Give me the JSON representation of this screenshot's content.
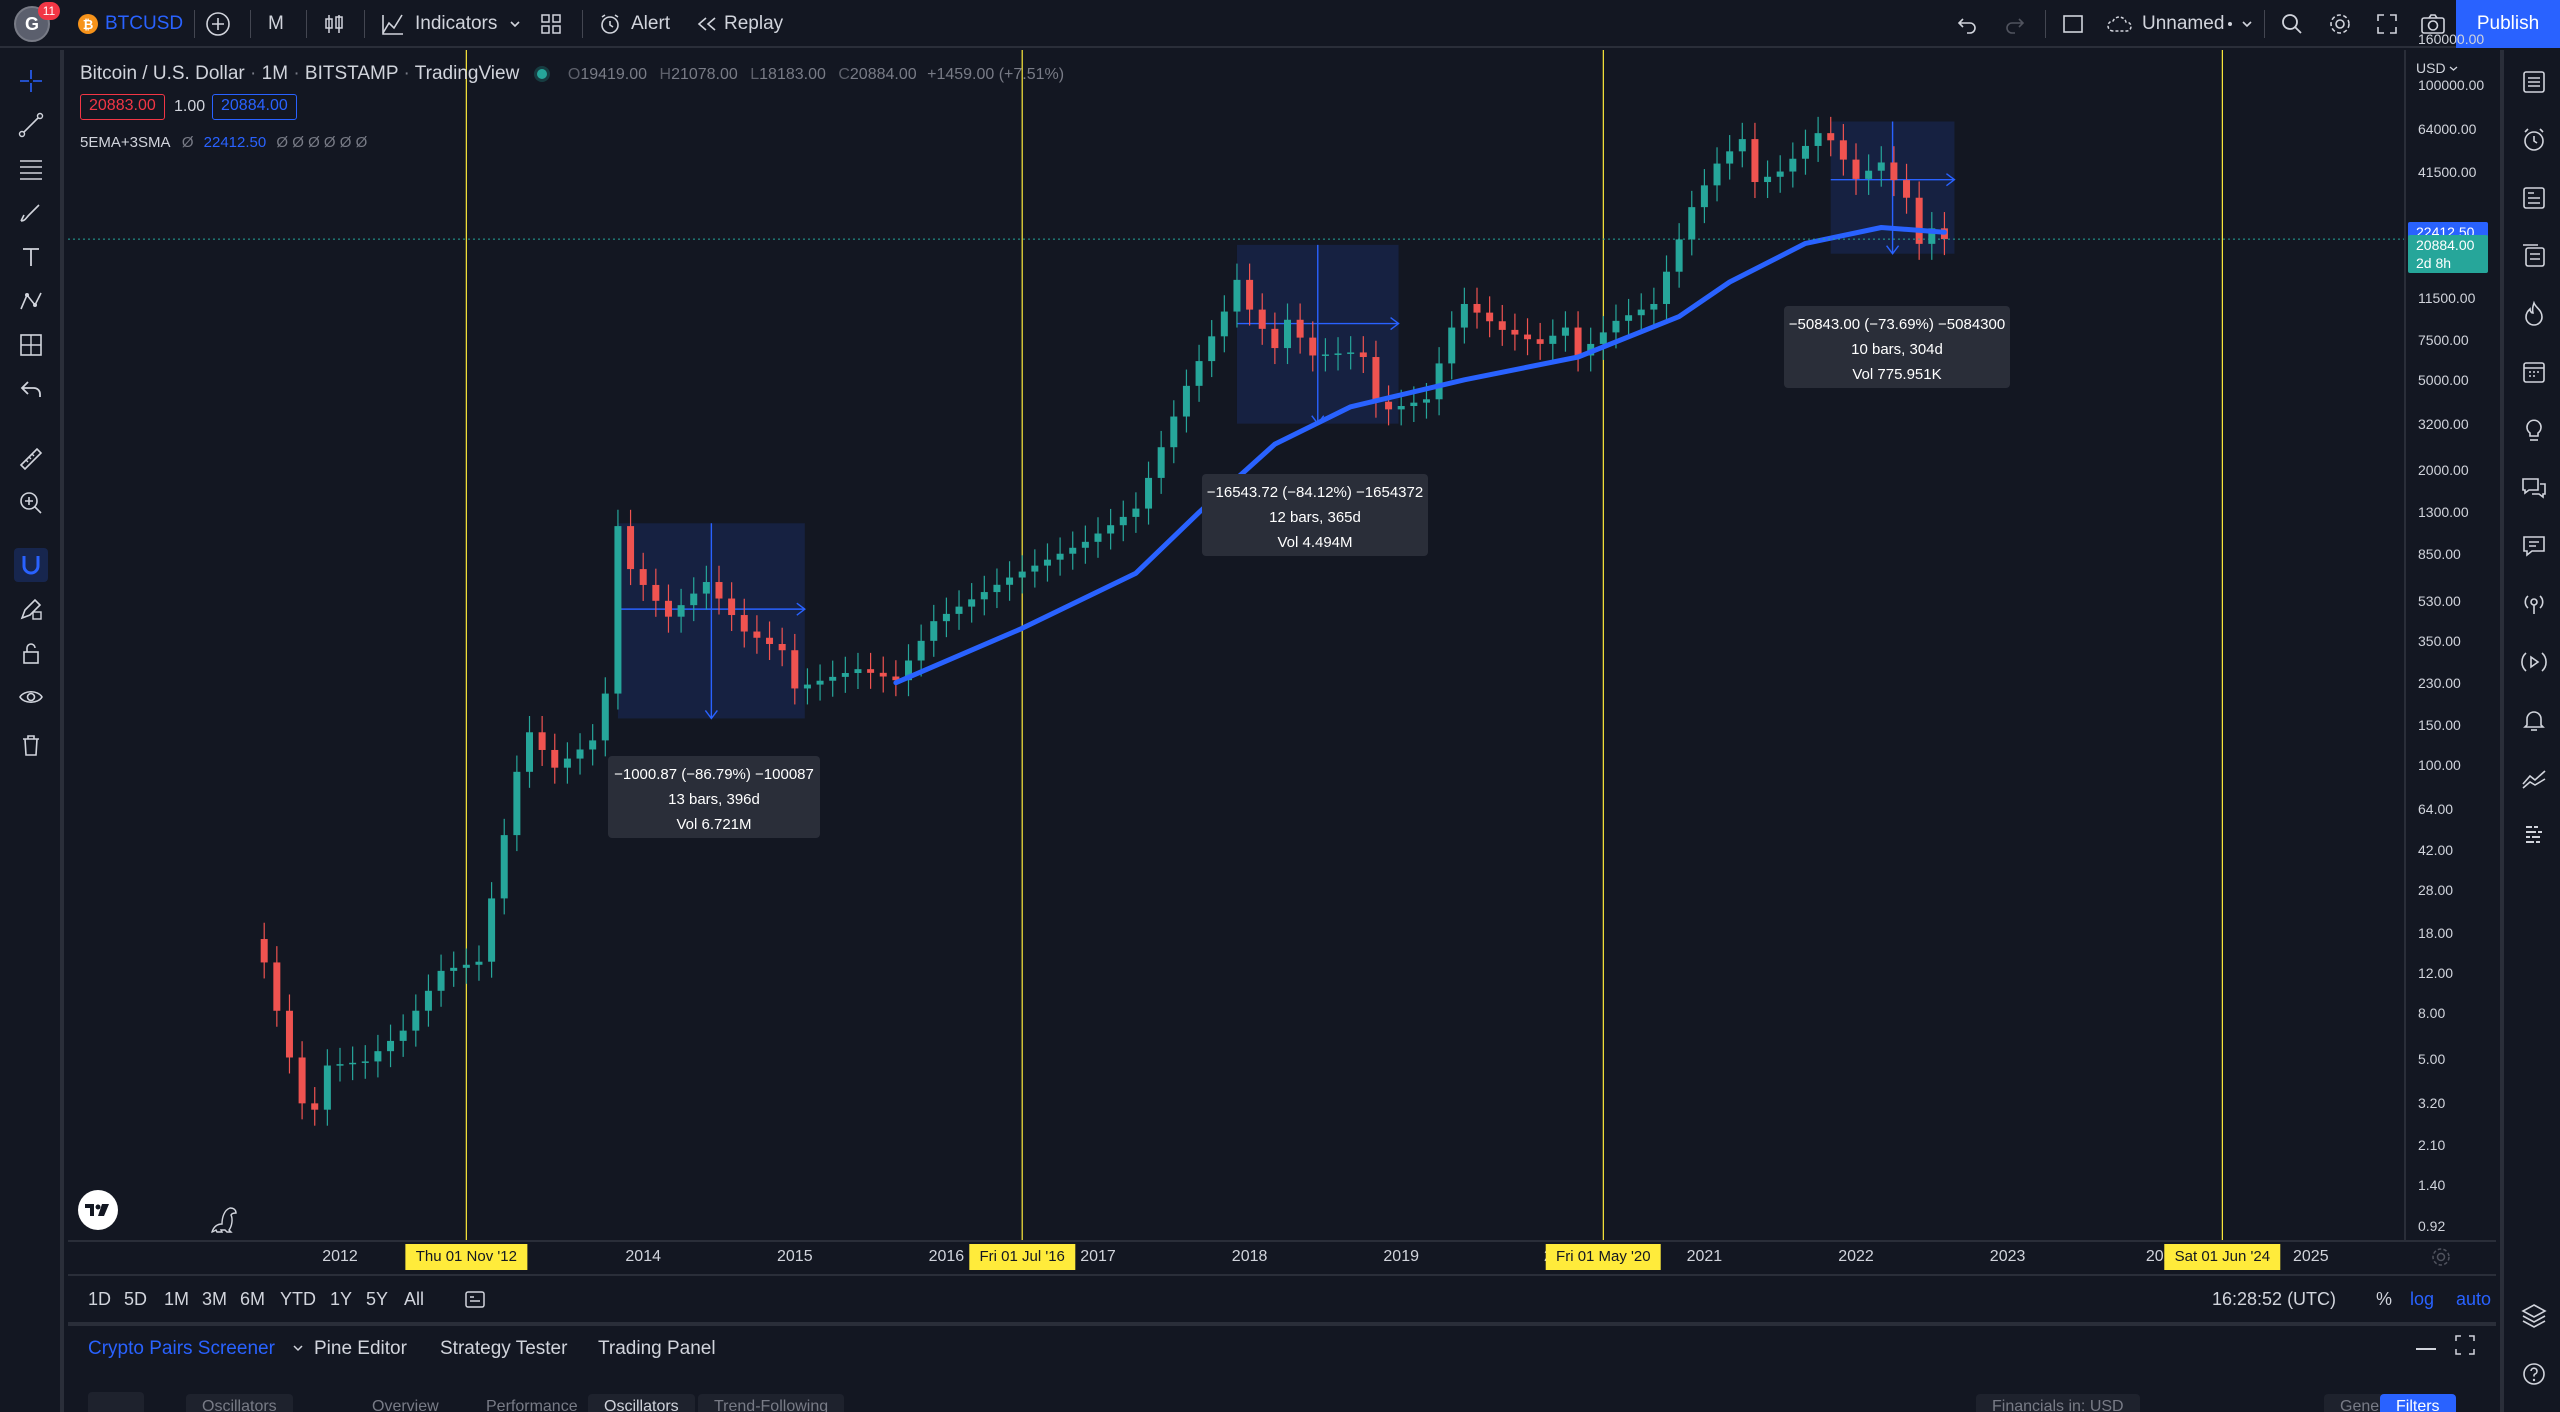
{
  "topbar": {
    "avatar_letter": "G",
    "notifications": "11",
    "symbol": "BTCUSD",
    "interval": "M",
    "indicators_label": "Indicators",
    "alert_label": "Alert",
    "replay_label": "Replay",
    "layout_name": "Unnamed",
    "publish_label": "Publish"
  },
  "legend": {
    "title": "Bitcoin / U.S. Dollar",
    "interval": "1M",
    "exchange": "BITSTAMP",
    "source": "TradingView",
    "o_label": "O",
    "o_value": "19419.00",
    "h_label": "H",
    "h_value": "21078.00",
    "l_label": "L",
    "l_value": "18183.00",
    "c_label": "C",
    "c_value": "20884.00",
    "change": "+1459.00 (+7.51%)",
    "bid": "20883.00",
    "spread": "1.00",
    "ask": "20884.00",
    "indicator_name": "5EMA+3SMA",
    "indicator_zero": "Ø",
    "indicator_value": "22412.50",
    "indicator_rest": "Ø Ø Ø Ø Ø Ø"
  },
  "price_scale": {
    "currency": "USD",
    "labels": [
      "160000.00",
      "100000.00",
      "64000.00",
      "41500.00",
      "22412.50",
      "20884.00",
      "11500.00",
      "7500.00",
      "5000.00",
      "3200.00",
      "2000.00",
      "1300.00",
      "850.00",
      "530.00",
      "350.00",
      "230.00",
      "150.00",
      "100.00",
      "64.00",
      "42.00",
      "28.00",
      "18.00",
      "12.00",
      "8.00",
      "5.00",
      "3.20",
      "2.10",
      "1.40",
      "0.92"
    ],
    "ema_tag": "22412.50",
    "price_tag": "20884.00",
    "countdown": "2d 8h"
  },
  "time_axis": {
    "years": [
      "2012",
      "2014",
      "2015",
      "2016",
      "2017",
      "2018",
      "2019",
      "20",
      "2021",
      "2022",
      "2023",
      "202",
      "2025"
    ],
    "markers": [
      "Thu 01 Nov '12",
      "Fri 01 Jul '16",
      "Fri 01 May '20",
      "Sat 01 Jun '24"
    ]
  },
  "measures": [
    {
      "line1": "−1000.87 (−86.79%) −100087",
      "line2": "13 bars, 396d",
      "line3": "Vol 6.721M"
    },
    {
      "line1": "−16543.72 (−84.12%) −1654372",
      "line2": "12 bars, 365d",
      "line3": "Vol 4.494M"
    },
    {
      "line1": "−50843.00 (−73.69%) −5084300",
      "line2": "10 bars, 304d",
      "line3": "Vol 775.951K"
    }
  ],
  "range_bar": {
    "ranges": [
      "1D",
      "5D",
      "1M",
      "3M",
      "6M",
      "YTD",
      "1Y",
      "5Y",
      "All"
    ],
    "clock": "16:28:52 (UTC)",
    "percent": "%",
    "log": "log",
    "auto": "auto"
  },
  "bottom_panel": {
    "tabs": [
      "Crypto Pairs Screener",
      "Pine Editor",
      "Strategy Tester",
      "Trading Panel"
    ],
    "chips": [
      "Oscillators",
      "Overview",
      "Performance",
      "Oscillators",
      "Trend-Following",
      "Financials in: USD",
      "General",
      "Filters"
    ]
  },
  "chart_data": {
    "type": "candlestick",
    "symbol": "BTCUSD",
    "interval": "1M",
    "scale": "log",
    "ylim": [
      0.92,
      160000
    ],
    "xlim": [
      "2011-04",
      "2025-08"
    ],
    "candles_approx": [
      {
        "t": "2011-07",
        "o": 15.4,
        "c": 13.4
      },
      {
        "t": "2011-08",
        "o": 13.4,
        "c": 8.2
      },
      {
        "t": "2011-09",
        "o": 8.2,
        "c": 5.1
      },
      {
        "t": "2011-10",
        "o": 5.1,
        "c": 3.2
      },
      {
        "t": "2011-11",
        "o": 3.2,
        "c": 3.0
      },
      {
        "t": "2011-12",
        "o": 3.0,
        "c": 4.7
      },
      {
        "t": "2012-06",
        "o": 5.3,
        "c": 6.7
      },
      {
        "t": "2012-12",
        "o": 12.5,
        "c": 13.5
      },
      {
        "t": "2013-04",
        "o": 93,
        "c": 139
      },
      {
        "t": "2013-11",
        "o": 206,
        "c": 1130
      },
      {
        "t": "2013-12",
        "o": 1130,
        "c": 730
      },
      {
        "t": "2014-12",
        "o": 377,
        "c": 320
      },
      {
        "t": "2015-01",
        "o": 320,
        "c": 217
      },
      {
        "t": "2015-12",
        "o": 377,
        "c": 430
      },
      {
        "t": "2016-12",
        "o": 742,
        "c": 963
      },
      {
        "t": "2017-12",
        "o": 9900,
        "c": 13800
      },
      {
        "t": "2018-12",
        "o": 4000,
        "c": 3700
      },
      {
        "t": "2019-06",
        "o": 8500,
        "c": 10800
      },
      {
        "t": "2020-03",
        "o": 8500,
        "c": 6400
      },
      {
        "t": "2020-12",
        "o": 19700,
        "c": 28900
      },
      {
        "t": "2021-04",
        "o": 58800,
        "c": 57700
      },
      {
        "t": "2021-11",
        "o": 61300,
        "c": 57000
      },
      {
        "t": "2022-06",
        "o": 31800,
        "c": 19900
      },
      {
        "t": "2022-08",
        "o": 19419,
        "h": 21078,
        "l": 18183,
        "c": 20884
      }
    ],
    "ema_series": [
      {
        "t": "2015-09",
        "v": 230
      },
      {
        "t": "2016-07",
        "v": 400
      },
      {
        "t": "2017-04",
        "v": 700
      },
      {
        "t": "2017-09",
        "v": 1300
      },
      {
        "t": "2018-03",
        "v": 2600
      },
      {
        "t": "2018-09",
        "v": 3800
      },
      {
        "t": "2019-06",
        "v": 5000
      },
      {
        "t": "2020-03",
        "v": 6300
      },
      {
        "t": "2020-11",
        "v": 9500
      },
      {
        "t": "2021-03",
        "v": 13500
      },
      {
        "t": "2021-09",
        "v": 20000
      },
      {
        "t": "2022-03",
        "v": 23500
      },
      {
        "t": "2022-08",
        "v": 22412.5
      }
    ]
  },
  "colors": {
    "up": "#26a69a",
    "down": "#ef5350",
    "ema": "#2962ff",
    "marker_line": "#ffeb3b",
    "background": "#131722"
  }
}
